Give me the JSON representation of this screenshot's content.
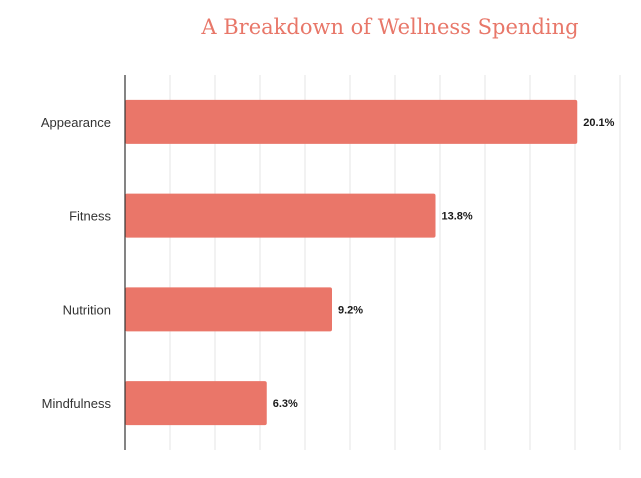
{
  "chart_data": {
    "type": "bar",
    "orientation": "horizontal",
    "title": "A Breakdown of Wellness Spending",
    "categories": [
      "Appearance",
      "Fitness",
      "Nutrition",
      "Mindfulness"
    ],
    "values": [
      20.1,
      13.8,
      9.2,
      6.3
    ],
    "value_labels": [
      "20.1%",
      "13.8%",
      "9.2%",
      "6.3%"
    ],
    "xlim": [
      0,
      22
    ],
    "xlabel": "",
    "ylabel": "",
    "grid": true,
    "legend": "none",
    "colors": {
      "bar": "#ea7669",
      "title": "#e87769",
      "gridline": "#e6e6e6",
      "axis": "#333333"
    }
  }
}
